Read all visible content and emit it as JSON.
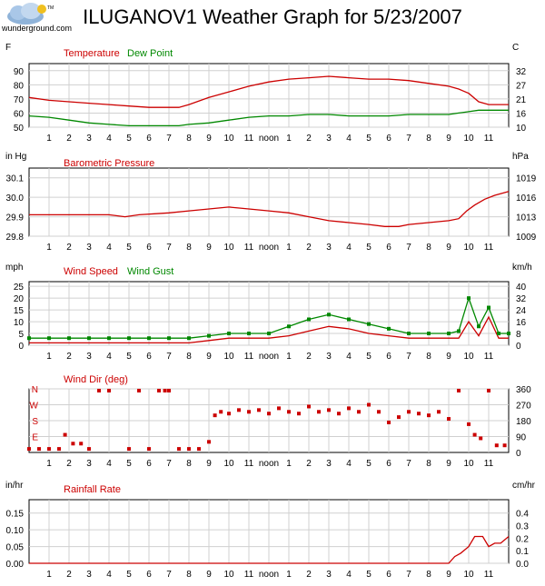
{
  "header": {
    "title": "ILUGANOV1 Weather Graph for 5/23/2007",
    "logo_text": "wunderground.com",
    "logo_tm": "TM"
  },
  "x_tick_labels": [
    "1",
    "2",
    "3",
    "4",
    "5",
    "6",
    "7",
    "8",
    "9",
    "10",
    "11",
    "noon",
    "1",
    "2",
    "3",
    "4",
    "5",
    "6",
    "7",
    "8",
    "9",
    "10",
    "11"
  ],
  "chart_data": [
    {
      "type": "line",
      "title": "",
      "legend": [
        "Temperature",
        "Dew Point"
      ],
      "ylabel_left": "F",
      "ylabel_right": "C",
      "ylim": [
        50,
        95
      ],
      "yticks_left": [
        "90",
        "80",
        "70",
        "60",
        "50"
      ],
      "yticks_right": [
        "32",
        "27",
        "21",
        "16",
        "10"
      ],
      "x_hours": [
        0,
        1,
        2,
        3,
        4,
        5,
        6,
        7,
        7.5,
        8,
        9,
        10,
        11,
        12,
        13,
        14,
        15,
        16,
        17,
        18,
        19,
        20,
        21,
        21.5,
        22,
        22.5,
        23,
        24
      ],
      "series": [
        {
          "name": "Temperature",
          "color": "#cc0000",
          "values": [
            71,
            69,
            68,
            67,
            66,
            65,
            64,
            64,
            64,
            66,
            71,
            75,
            79,
            82,
            84,
            85,
            86,
            85,
            84,
            84,
            83,
            81,
            79,
            77,
            74,
            68,
            66,
            66
          ]
        },
        {
          "name": "Dew Point",
          "color": "#008800",
          "values": [
            58,
            57,
            55,
            53,
            52,
            51,
            51,
            51,
            51,
            52,
            53,
            55,
            57,
            58,
            58,
            59,
            59,
            58,
            58,
            58,
            59,
            59,
            59,
            60,
            61,
            62,
            62,
            62
          ]
        }
      ]
    },
    {
      "type": "line",
      "title": "",
      "legend": [
        "Barometric Pressure"
      ],
      "ylabel_left": "in Hg",
      "ylabel_right": "hPa",
      "ylim": [
        29.8,
        30.15
      ],
      "yticks_left": [
        "30.1",
        "30.0",
        "29.9",
        "29.8"
      ],
      "yticks_right": [
        "1019",
        "1016",
        "1013",
        "1009"
      ],
      "x_hours": [
        0,
        2,
        4,
        4.8,
        5.5,
        7,
        8,
        9,
        10,
        11,
        12,
        13,
        14,
        15,
        16,
        17,
        17.8,
        18.5,
        19,
        20,
        21,
        21.5,
        21.9,
        22.3,
        22.8,
        23.3,
        24
      ],
      "series": [
        {
          "name": "Barometric Pressure",
          "color": "#cc0000",
          "values": [
            29.91,
            29.91,
            29.91,
            29.9,
            29.91,
            29.92,
            29.93,
            29.94,
            29.95,
            29.94,
            29.93,
            29.92,
            29.9,
            29.88,
            29.87,
            29.86,
            29.85,
            29.85,
            29.86,
            29.87,
            29.88,
            29.89,
            29.93,
            29.96,
            29.99,
            30.01,
            30.03
          ]
        }
      ]
    },
    {
      "type": "line",
      "title": "",
      "legend": [
        "Wind Speed",
        "Wind Gust"
      ],
      "ylabel_left": "mph",
      "ylabel_right": "km/h",
      "ylim": [
        0,
        27
      ],
      "yticks_left": [
        "25",
        "20",
        "15",
        "10",
        "5",
        "0"
      ],
      "yticks_right": [
        "40",
        "32",
        "24",
        "16",
        "8",
        "0"
      ],
      "x_hours": [
        0,
        1,
        2,
        3,
        4,
        5,
        6,
        7,
        8,
        9,
        10,
        11,
        12,
        13,
        14,
        15,
        16,
        17,
        18,
        19,
        20,
        21,
        21.5,
        22,
        22.5,
        23,
        23.5,
        24
      ],
      "series": [
        {
          "name": "Wind Speed",
          "color": "#cc0000",
          "values": [
            1,
            1,
            1,
            1,
            1,
            1,
            1,
            1,
            1,
            2,
            3,
            3,
            3,
            4,
            6,
            8,
            7,
            5,
            4,
            3,
            3,
            3,
            3,
            10,
            4,
            12,
            3,
            3
          ]
        },
        {
          "name": "Wind Gust",
          "color": "#008800",
          "values": [
            3,
            3,
            3,
            3,
            3,
            3,
            3,
            3,
            3,
            4,
            5,
            5,
            5,
            8,
            11,
            13,
            11,
            9,
            7,
            5,
            5,
            5,
            6,
            20,
            8,
            16,
            5,
            5
          ]
        }
      ]
    },
    {
      "type": "scatter",
      "title": "",
      "legend": [
        "Wind Dir (deg)"
      ],
      "ylabel_left": "",
      "ylabel_right": "",
      "ylim": [
        0,
        360
      ],
      "yticks_left": [
        "N",
        "W",
        "S",
        "E"
      ],
      "yticks_left_values": [
        360,
        270,
        180,
        90
      ],
      "yticks_right": [
        "360",
        "270",
        "180",
        "90",
        "0"
      ],
      "x_hours": [
        0,
        0.5,
        1,
        1.5,
        1.8,
        2.2,
        2.6,
        3,
        3.5,
        4,
        5,
        5.5,
        6,
        6.5,
        6.8,
        7,
        7.5,
        8,
        8.5,
        9,
        9.3,
        9.6,
        10,
        10.5,
        11,
        11.5,
        12,
        12.5,
        13,
        13.5,
        14,
        14.5,
        15,
        15.5,
        16,
        16.5,
        17,
        17.5,
        18,
        18.5,
        19,
        19.5,
        20,
        20.5,
        21,
        21.5,
        22,
        22.3,
        22.6,
        23,
        23.4,
        23.8
      ],
      "series": [
        {
          "name": "Wind Dir (deg)",
          "color": "#cc0000",
          "values": [
            20,
            20,
            20,
            20,
            100,
            50,
            50,
            20,
            350,
            350,
            20,
            350,
            20,
            350,
            350,
            350,
            20,
            20,
            20,
            60,
            210,
            230,
            220,
            240,
            230,
            240,
            220,
            250,
            230,
            220,
            260,
            230,
            240,
            220,
            250,
            230,
            270,
            230,
            170,
            200,
            230,
            220,
            210,
            230,
            190,
            350,
            160,
            100,
            80,
            350,
            40,
            40
          ]
        }
      ]
    },
    {
      "type": "line",
      "title": "",
      "legend": [
        "Rainfall Rate"
      ],
      "ylabel_left": "in/hr",
      "ylabel_right": "cm/hr",
      "ylim": [
        0,
        0.19
      ],
      "yticks_left": [
        "0.15",
        "0.10",
        "0.05",
        "0.00"
      ],
      "yticks_right": [
        "0.4",
        "0.3",
        "0.2",
        "0.1",
        "0.0"
      ],
      "x_hours": [
        0,
        21,
        21.3,
        21.6,
        22,
        22.3,
        22.7,
        23,
        23.3,
        23.6,
        24
      ],
      "series": [
        {
          "name": "Rainfall Rate",
          "color": "#cc0000",
          "values": [
            0,
            0,
            0.02,
            0.03,
            0.05,
            0.08,
            0.08,
            0.05,
            0.06,
            0.06,
            0.08
          ]
        }
      ]
    }
  ]
}
